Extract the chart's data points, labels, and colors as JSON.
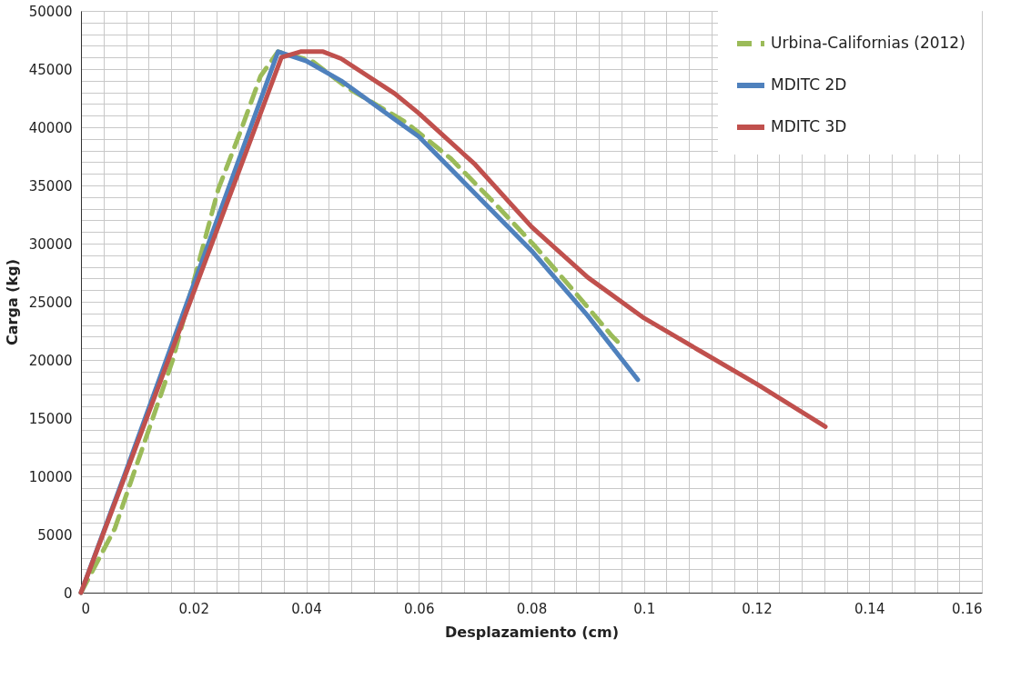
{
  "chart_data": {
    "type": "line",
    "xlabel": "Desplazamiento (cm)",
    "ylabel": "Carga (kg)",
    "xlim": [
      0,
      0.16
    ],
    "ylim": [
      0,
      50000
    ],
    "xticks": [
      0,
      {
        "value": 0.004,
        "label": null
      },
      {
        "value": 0.008,
        "label": null
      },
      {
        "value": 0.012,
        "label": null
      },
      {
        "value": 0.016,
        "label": null
      },
      0.02,
      {
        "value": 0.024,
        "label": null
      },
      {
        "value": 0.028,
        "label": null
      },
      {
        "value": 0.032,
        "label": null
      },
      {
        "value": 0.036,
        "label": null
      },
      0.04,
      {
        "value": 0.044,
        "label": null
      },
      {
        "value": 0.048,
        "label": null
      },
      {
        "value": 0.052,
        "label": null
      },
      {
        "value": 0.056,
        "label": null
      },
      0.06,
      {
        "value": 0.064,
        "label": null
      },
      {
        "value": 0.068,
        "label": null
      },
      {
        "value": 0.072,
        "label": null
      },
      {
        "value": 0.076,
        "label": null
      },
      0.08,
      {
        "value": 0.084,
        "label": null
      },
      {
        "value": 0.088,
        "label": null
      },
      {
        "value": 0.092,
        "label": null
      },
      {
        "value": 0.096,
        "label": null
      },
      0.1,
      {
        "value": 0.104,
        "label": null
      },
      {
        "value": 0.108,
        "label": null
      },
      {
        "value": 0.112,
        "label": null
      },
      {
        "value": 0.116,
        "label": null
      },
      0.12,
      {
        "value": 0.124,
        "label": null
      },
      {
        "value": 0.128,
        "label": null
      },
      {
        "value": 0.132,
        "label": null
      },
      {
        "value": 0.136,
        "label": null
      },
      0.14,
      {
        "value": 0.144,
        "label": null
      },
      {
        "value": 0.148,
        "label": null
      },
      {
        "value": 0.152,
        "label": null
      },
      {
        "value": 0.156,
        "label": null
      },
      0.16
    ],
    "yticks": [
      0,
      {
        "value": 1000,
        "label": null
      },
      {
        "value": 2000,
        "label": null
      },
      {
        "value": 3000,
        "label": null
      },
      {
        "value": 4000,
        "label": null
      },
      5000,
      {
        "value": 6000,
        "label": null
      },
      {
        "value": 7000,
        "label": null
      },
      {
        "value": 8000,
        "label": null
      },
      {
        "value": 9000,
        "label": null
      },
      10000,
      {
        "value": 11000,
        "label": null
      },
      {
        "value": 12000,
        "label": null
      },
      {
        "value": 13000,
        "label": null
      },
      {
        "value": 14000,
        "label": null
      },
      15000,
      {
        "value": 16000,
        "label": null
      },
      {
        "value": 17000,
        "label": null
      },
      {
        "value": 18000,
        "label": null
      },
      {
        "value": 19000,
        "label": null
      },
      20000,
      {
        "value": 21000,
        "label": null
      },
      {
        "value": 22000,
        "label": null
      },
      {
        "value": 23000,
        "label": null
      },
      {
        "value": 24000,
        "label": null
      },
      25000,
      {
        "value": 26000,
        "label": null
      },
      {
        "value": 27000,
        "label": null
      },
      {
        "value": 28000,
        "label": null
      },
      {
        "value": 29000,
        "label": null
      },
      30000,
      {
        "value": 31000,
        "label": null
      },
      {
        "value": 32000,
        "label": null
      },
      {
        "value": 33000,
        "label": null
      },
      {
        "value": 34000,
        "label": null
      },
      35000,
      {
        "value": 36000,
        "label": null
      },
      {
        "value": 37000,
        "label": null
      },
      {
        "value": 38000,
        "label": null
      },
      {
        "value": 39000,
        "label": null
      },
      40000,
      {
        "value": 41000,
        "label": null
      },
      {
        "value": 42000,
        "label": null
      },
      {
        "value": 43000,
        "label": null
      },
      {
        "value": 44000,
        "label": null
      },
      45000,
      {
        "value": 46000,
        "label": null
      },
      {
        "value": 47000,
        "label": null
      },
      {
        "value": 48000,
        "label": null
      },
      {
        "value": 49000,
        "label": null
      },
      50000
    ],
    "grid": true,
    "legend": "top right",
    "series": [
      {
        "name": "Urbina-Californias (2012)",
        "color": "#9bbb59",
        "line_style": "dashed",
        "x": [
          0,
          0.006,
          0.0094,
          0.0129,
          0.0163,
          0.0244,
          0.0283,
          0.0319,
          0.035,
          0.041,
          0.0473,
          0.0578,
          0.0657,
          0.0732,
          0.0806,
          0.0875,
          0.0943,
          0.0962
        ],
        "values": [
          0,
          5500,
          10300,
          15200,
          20000,
          34700,
          39600,
          44400,
          46500,
          45700,
          43400,
          40400,
          37300,
          33600,
          29800,
          25950,
          22060,
          21150
        ]
      },
      {
        "name": "MDITC 2D",
        "color": "#4f81bd",
        "line_style": "solid",
        "x": [
          0,
          0.0078,
          0.035,
          0.04,
          0.0462,
          0.0562,
          0.06,
          0.07,
          0.08,
          0.09,
          0.0989
        ],
        "values": [
          0,
          10200,
          46500,
          45700,
          44000,
          40500,
          39200,
          34300,
          29400,
          23800,
          18300
        ]
      },
      {
        "name": "MDITC 3D",
        "color": "#c0504d",
        "line_style": "solid",
        "x": [
          0,
          0.0078,
          0.0356,
          0.039,
          0.043,
          0.0462,
          0.0557,
          0.06,
          0.07,
          0.08,
          0.09,
          0.1,
          0.11,
          0.12,
          0.1322
        ],
        "values": [
          0,
          10000,
          46000,
          46500,
          46500,
          45900,
          42900,
          41200,
          36800,
          31450,
          27100,
          23600,
          20760,
          17940,
          14270
        ]
      }
    ]
  }
}
